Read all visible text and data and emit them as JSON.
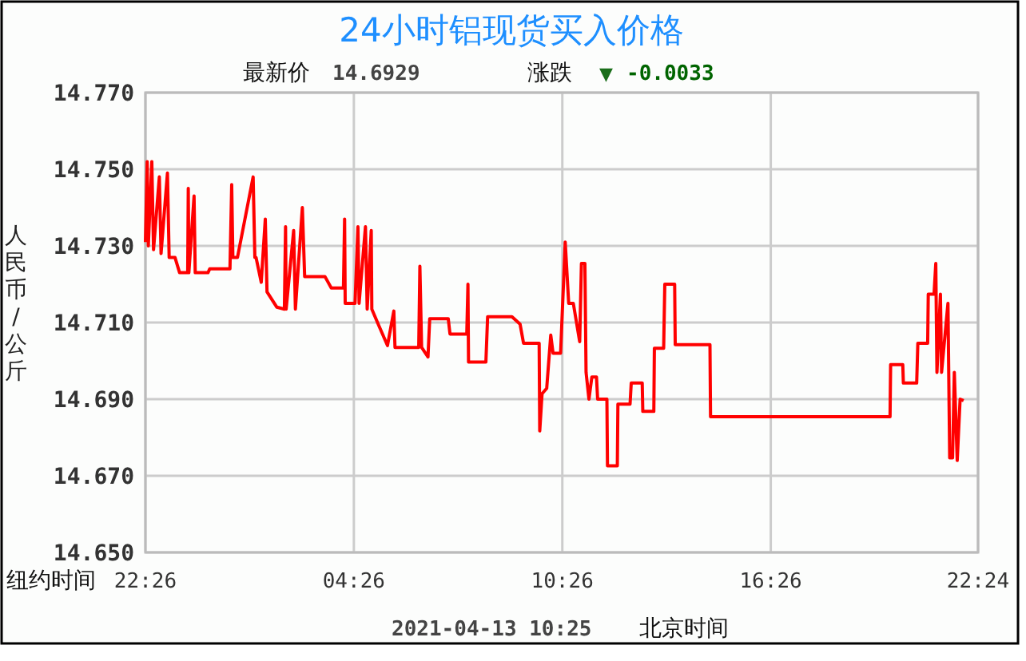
{
  "chart_data": {
    "type": "line",
    "title": "24小时铝现货买入价格",
    "ylabel": "人民币/公斤",
    "annotations": [
      "最新价",
      "14.6929",
      "涨跌",
      "▼",
      "-0.0033",
      "纽约时间",
      "2021-04-13 10:25",
      "北京时间"
    ],
    "xlim": [
      "2021-04-12T22:26",
      "2021-04-13T22:24"
    ],
    "xticks": [
      {
        "value": "2021-04-12T22:26",
        "label": "22:26"
      },
      {
        "value": "2021-04-13T04:26",
        "label": "04:26"
      },
      {
        "value": "2021-04-13T10:26",
        "label": "10:26"
      },
      {
        "value": "2021-04-13T16:26",
        "label": "16:26"
      },
      {
        "value": "2021-04-13T22:24",
        "label": "22:24"
      }
    ],
    "ylim": [
      14.65,
      14.77
    ],
    "yticks": [
      {
        "value": 14.65,
        "label": "14.650"
      },
      {
        "value": 14.67,
        "label": "14.670"
      },
      {
        "value": 14.69,
        "label": "14.690"
      },
      {
        "value": 14.71,
        "label": "14.710"
      },
      {
        "value": 14.73,
        "label": "14.730"
      },
      {
        "value": 14.75,
        "label": "14.750"
      },
      {
        "value": 14.77,
        "label": "14.770"
      }
    ],
    "grid": true,
    "marker": "none",
    "line_style": "solid",
    "series": [
      {
        "color": "#ff0000",
        "x": [
          "2021-04-12T22:26",
          "2021-04-12T22:29",
          "2021-04-12T22:31",
          "2021-04-12T22:37",
          "2021-04-12T22:40",
          "2021-04-12T22:50",
          "2021-04-12T22:53",
          "2021-04-12T23:04",
          "2021-04-12T23:07",
          "2021-04-12T23:17",
          "2021-04-12T23:25",
          "2021-04-12T23:39",
          "2021-04-12T23:40",
          "2021-04-12T23:41",
          "2021-04-12T23:50",
          "2021-04-12T23:52",
          "2021-04-13T00:14",
          "2021-04-13T00:17",
          "2021-04-13T00:52",
          "2021-04-13T00:55",
          "2021-04-13T00:57",
          "2021-04-13T01:05",
          "2021-04-13T01:32",
          "2021-04-13T01:35",
          "2021-04-13T01:37",
          "2021-04-13T01:46",
          "2021-04-13T01:53",
          "2021-04-13T01:56",
          "2021-04-13T02:13",
          "2021-04-13T02:26",
          "2021-04-13T02:28",
          "2021-04-13T02:29",
          "2021-04-13T02:42",
          "2021-04-13T02:45",
          "2021-04-13T02:57",
          "2021-04-13T03:01",
          "2021-04-13T03:36",
          "2021-04-13T03:47",
          "2021-04-13T04:08",
          "2021-04-13T04:10",
          "2021-04-13T04:11",
          "2021-04-13T04:28",
          "2021-04-13T04:33",
          "2021-04-13T04:35",
          "2021-04-13T04:46",
          "2021-04-13T04:49",
          "2021-04-13T04:56",
          "2021-04-13T04:57",
          "2021-04-13T05:08",
          "2021-04-13T05:24",
          "2021-04-13T05:35",
          "2021-04-13T05:37",
          "2021-04-13T06:18",
          "2021-04-13T06:20",
          "2021-04-13T06:23",
          "2021-04-13T06:34",
          "2021-04-13T06:37",
          "2021-04-13T07:09",
          "2021-04-13T07:12",
          "2021-04-13T07:41",
          "2021-04-13T07:43",
          "2021-04-13T07:44",
          "2021-04-13T08:14",
          "2021-04-13T08:17",
          "2021-04-13T08:59",
          "2021-04-13T09:13",
          "2021-04-13T09:19",
          "2021-04-13T09:46",
          "2021-04-13T09:47",
          "2021-04-13T09:51",
          "2021-04-13T09:59",
          "2021-04-13T10:06",
          "2021-04-13T10:10",
          "2021-04-13T10:23",
          "2021-04-13T10:31",
          "2021-04-13T10:37",
          "2021-04-13T10:45",
          "2021-04-13T10:56",
          "2021-04-13T10:59",
          "2021-04-13T11:05",
          "2021-04-13T11:07",
          "2021-04-13T11:12",
          "2021-04-13T11:17",
          "2021-04-13T11:25",
          "2021-04-13T11:27",
          "2021-04-13T11:43",
          "2021-04-13T11:44",
          "2021-04-13T12:01",
          "2021-04-13T12:02",
          "2021-04-13T12:23",
          "2021-04-13T12:25",
          "2021-04-13T12:44",
          "2021-04-13T12:45",
          "2021-04-13T13:04",
          "2021-04-13T13:05",
          "2021-04-13T13:21",
          "2021-04-13T13:23",
          "2021-04-13T13:40",
          "2021-04-13T13:41",
          "2021-04-13T14:41",
          "2021-04-13T14:42",
          "2021-04-13T19:52",
          "2021-04-13T19:53",
          "2021-04-13T20:14",
          "2021-04-13T20:15",
          "2021-04-13T20:38",
          "2021-04-13T20:40",
          "2021-04-13T20:57",
          "2021-04-13T20:58",
          "2021-04-13T21:08",
          "2021-04-13T21:11",
          "2021-04-13T21:13",
          "2021-04-13T21:19",
          "2021-04-13T21:21",
          "2021-04-13T21:32",
          "2021-04-13T21:35",
          "2021-04-13T21:40",
          "2021-04-13T21:43",
          "2021-04-13T21:48",
          "2021-04-13T21:53",
          "2021-04-13T21:59"
        ],
        "values": [
          14.731,
          14.752,
          14.73,
          14.752,
          14.729,
          14.748,
          14.728,
          14.749,
          14.727,
          14.727,
          14.723,
          14.723,
          14.745,
          14.723,
          14.743,
          14.723,
          14.723,
          14.724,
          14.724,
          14.746,
          14.727,
          14.727,
          14.748,
          14.727,
          14.727,
          14.7205,
          14.737,
          14.718,
          14.714,
          14.7135,
          14.735,
          14.7135,
          14.734,
          14.7135,
          14.74,
          14.722,
          14.722,
          14.719,
          14.719,
          14.737,
          14.715,
          14.715,
          14.735,
          14.715,
          14.735,
          14.7135,
          14.734,
          14.7135,
          14.7096,
          14.704,
          14.713,
          14.7035,
          14.7035,
          14.7247,
          14.7035,
          14.701,
          14.711,
          14.711,
          14.707,
          14.707,
          14.72,
          14.6997,
          14.6997,
          14.7115,
          14.7115,
          14.7096,
          14.7046,
          14.7046,
          14.6817,
          14.6914,
          14.6928,
          14.7067,
          14.702,
          14.702,
          14.731,
          14.715,
          14.715,
          14.705,
          14.7254,
          14.7254,
          14.697,
          14.69,
          14.6958,
          14.6958,
          14.69,
          14.69,
          14.6726,
          14.6726,
          14.6887,
          14.6887,
          14.6942,
          14.6942,
          14.6868,
          14.6868,
          14.7033,
          14.7033,
          14.72,
          14.72,
          14.7042,
          14.7042,
          14.6854,
          14.6854,
          14.699,
          14.699,
          14.6942,
          14.6942,
          14.7046,
          14.7046,
          14.7174,
          14.7174,
          14.7254,
          14.697,
          14.7174,
          14.697,
          14.715,
          14.6747,
          14.6747,
          14.697,
          14.674,
          14.69,
          14.6896
        ]
      }
    ]
  }
}
